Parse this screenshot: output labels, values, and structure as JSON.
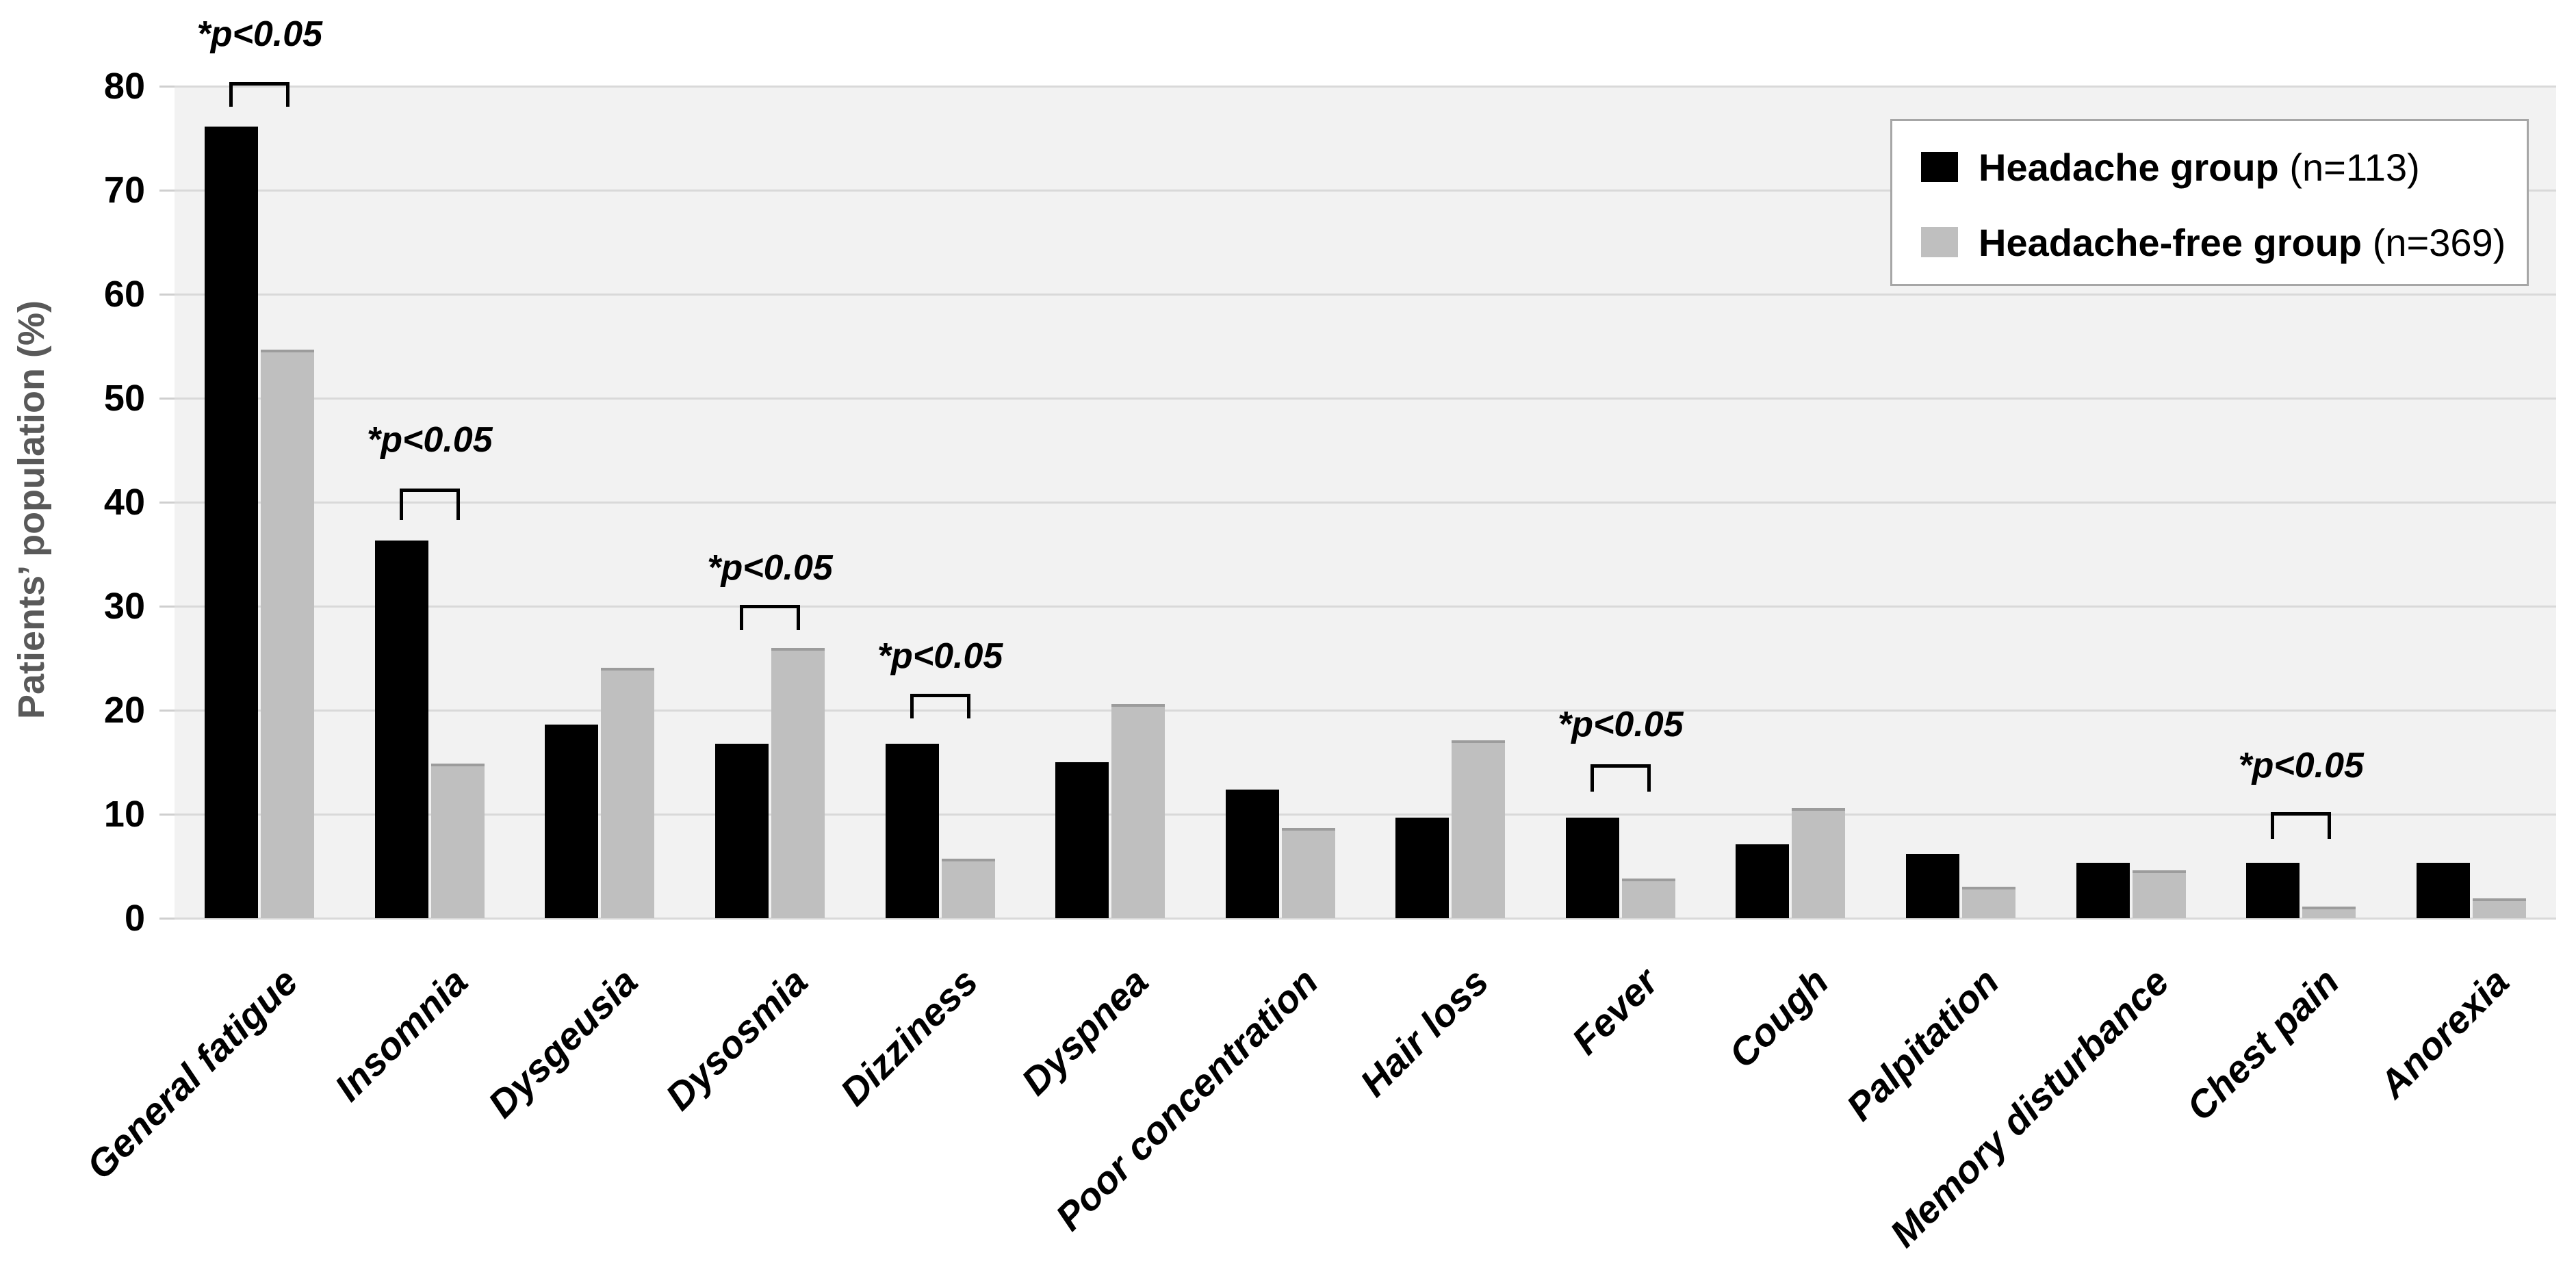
{
  "y_axis": {
    "title": "Patients’ population (%)",
    "ticks": [
      0,
      10,
      20,
      30,
      40,
      50,
      60,
      70,
      80
    ],
    "max": 80
  },
  "legend": {
    "items": [
      {
        "label": "Headache group",
        "suffix": " (n=113)",
        "color": "#000000"
      },
      {
        "label": "Headache-free group",
        "suffix": " (n=369)",
        "color": "#bfbfbf"
      }
    ]
  },
  "chart_data": {
    "type": "bar",
    "title": "",
    "xlabel": "",
    "ylabel": "Patients’ population (%)",
    "ylim": [
      0,
      80
    ],
    "grid": true,
    "legend_position": "top-right",
    "categories": [
      "General fatigue",
      "Insomnia",
      "Dysgeusia",
      "Dysosmia",
      "Dizziness",
      "Dyspnea",
      "Poor concentration",
      "Hair loss",
      "Fever",
      "Cough",
      "Palpitation",
      "Memory disturbance",
      "Chest pain",
      "Anorexia"
    ],
    "series": [
      {
        "name": "Headache group",
        "n_label": "(n=113)",
        "color": "#000000",
        "values": [
          76.1,
          36.3,
          18.6,
          16.8,
          16.8,
          15.0,
          12.4,
          9.7,
          9.7,
          7.1,
          6.2,
          5.3,
          5.3,
          5.3
        ]
      },
      {
        "name": "Headache-free group",
        "n_label": "(n=369)",
        "color": "#bfbfbf",
        "values": [
          54.7,
          14.9,
          24.1,
          26.0,
          5.7,
          20.6,
          8.7,
          17.1,
          3.8,
          10.6,
          3.0,
          4.6,
          1.1,
          1.9
        ]
      }
    ],
    "annotations": [
      {
        "category_index": 0,
        "label": "*p<0.05",
        "bracket_y": 80.4,
        "leg_y": 78.0,
        "text_y": 85.0
      },
      {
        "category_index": 1,
        "label": "*p<0.05",
        "bracket_y": 41.3,
        "leg_y": 38.3,
        "text_y": 46.0
      },
      {
        "category_index": 3,
        "label": "*p<0.05",
        "bracket_y": 30.1,
        "leg_y": 27.7,
        "text_y": 33.7
      },
      {
        "category_index": 4,
        "label": "*p<0.05",
        "bracket_y": 21.6,
        "leg_y": 19.2,
        "text_y": 25.2
      },
      {
        "category_index": 8,
        "label": "*p<0.05",
        "bracket_y": 14.8,
        "leg_y": 12.2,
        "text_y": 18.6
      },
      {
        "category_index": 12,
        "label": "*p<0.05",
        "bracket_y": 10.2,
        "leg_y": 7.6,
        "text_y": 14.7
      }
    ]
  },
  "colors": {
    "plot_background": "#f2f2f2",
    "gridline": "#d9d9d9",
    "series_black": "#000000",
    "series_gray": "#bfbfbf",
    "axis_title": "#595959",
    "legend_border": "#a6a6a6"
  }
}
